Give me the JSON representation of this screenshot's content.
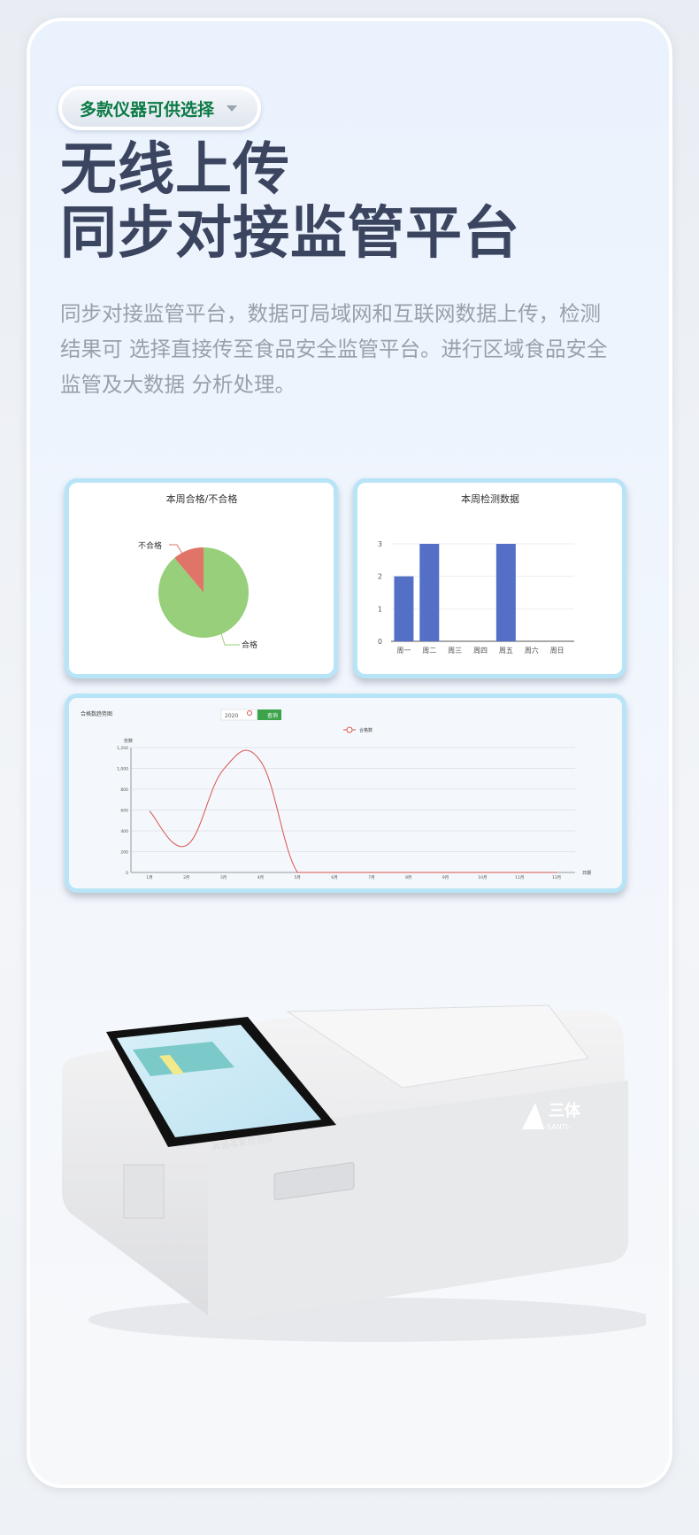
{
  "selector": {
    "label": "多款仪器可供选择",
    "icon": "chevron-down-icon"
  },
  "headline": {
    "line1": "无线上传",
    "line2": "同步对接监管平台"
  },
  "description": [
    "同步对接监管平台，数据可局域网和互联网数据上传，检测",
    "结果可 选择直接传至食品安全监管平台。进行区域食品安全",
    "监管及大数据 分析处理。"
  ],
  "chart_data": [
    {
      "type": "pie",
      "title": "本周合格/不合格",
      "categories": [
        "合格",
        "不合格"
      ],
      "values": [
        8,
        1
      ],
      "colors": [
        "#97cf7a",
        "#e07468"
      ]
    },
    {
      "type": "bar",
      "title": "本周检测数据",
      "categories": [
        "周一",
        "周二",
        "周三",
        "周四",
        "周五",
        "周六",
        "周日"
      ],
      "values": [
        2,
        3,
        0,
        0,
        3,
        0,
        0
      ],
      "ylim": [
        0,
        3
      ],
      "yticks": [
        "0",
        "1",
        "2",
        "3"
      ],
      "color": "#5470c6",
      "grid": true
    },
    {
      "type": "line",
      "title": "合格数趋势图",
      "year_input": "2020",
      "query_button": "查询",
      "legend": [
        "合格数"
      ],
      "ylabel": "份数",
      "xlabel": "日期",
      "categories": [
        "1月",
        "2月",
        "3月",
        "4月",
        "5月",
        "6月",
        "7月",
        "8月",
        "9月",
        "10月",
        "11月",
        "12月"
      ],
      "values": [
        590,
        260,
        990,
        1070,
        0,
        0,
        0,
        0,
        0,
        0,
        0,
        0
      ],
      "ylim": [
        0,
        1200
      ],
      "yticks": [
        "0",
        "200",
        "400",
        "600",
        "800",
        "1,000",
        "1,200"
      ],
      "color": "#d9534f",
      "accent": "#3ca34a",
      "grid": true
    }
  ],
  "device": {
    "brand": "三体",
    "brand_sub": "-SANTI-",
    "screen_label": "真菌毒素检测仪"
  }
}
